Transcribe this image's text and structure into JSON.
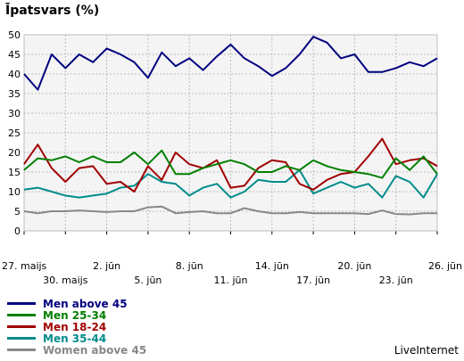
{
  "title": "Īpatsvars (%)",
  "watermark": "LiveInternet",
  "colors": {
    "plot_bg": "#f4f4f4",
    "grid": "#bdbdbd",
    "axis": "#000000"
  },
  "chart_data": {
    "type": "line",
    "title": "Īpatsvars (%)",
    "xlabel": "",
    "ylabel": "",
    "ylim": [
      0,
      50
    ],
    "yticks": [
      0,
      5,
      10,
      15,
      20,
      25,
      30,
      35,
      40,
      45,
      50
    ],
    "grid": true,
    "legend_position": "bottom-left",
    "x_tick_labels": [
      {
        "index": 0,
        "label": "27. maijs"
      },
      {
        "index": 3,
        "label": "30. maijs"
      },
      {
        "index": 6,
        "label": "2. jūn"
      },
      {
        "index": 9,
        "label": "5. jūn"
      },
      {
        "index": 12,
        "label": "8. jūn"
      },
      {
        "index": 15,
        "label": "11. jūn"
      },
      {
        "index": 18,
        "label": "14. jūn"
      },
      {
        "index": 21,
        "label": "17. jūn"
      },
      {
        "index": 24,
        "label": "20. jūn"
      },
      {
        "index": 27,
        "label": "23. jūn"
      },
      {
        "index": 30,
        "label": "26. jūn"
      }
    ],
    "series": [
      {
        "name": "Women above 45",
        "color": "#888888",
        "values": [
          5,
          4.5,
          5,
          5,
          5.2,
          5,
          4.8,
          5,
          5,
          6,
          6.2,
          4.5,
          4.8,
          5,
          4.5,
          4.5,
          5.8,
          5,
          4.5,
          4.5,
          4.8,
          4.5,
          4.5,
          4.5,
          4.5,
          4.3,
          5.2,
          4.3,
          4.2,
          4.5,
          4.5
        ]
      },
      {
        "name": "Men 35-44",
        "color": "#008b8b",
        "values": [
          10.5,
          11,
          10,
          9,
          8.5,
          9,
          9.5,
          11,
          11.5,
          14.5,
          12.5,
          12,
          9,
          11,
          12,
          8.5,
          10,
          13,
          12.5,
          12.5,
          15.5,
          9.5,
          11,
          12.5,
          11,
          12,
          8.5,
          14,
          12.5,
          8.5,
          14.5
        ]
      },
      {
        "name": "Men 18-24",
        "color": "#a00000",
        "values": [
          17,
          22,
          16,
          12.5,
          16,
          16.5,
          12,
          12.5,
          10,
          16.5,
          13,
          20,
          17,
          16,
          18,
          11,
          11.5,
          16,
          18,
          17.5,
          12,
          10.5,
          13,
          14.5,
          15,
          19,
          23.5,
          17,
          18,
          18.5,
          16.5
        ]
      },
      {
        "name": "Men 25-34",
        "color": "#008000",
        "values": [
          15.5,
          18.5,
          18,
          19,
          17.5,
          19,
          17.5,
          17.5,
          20,
          17,
          20.5,
          14.5,
          14.5,
          16,
          17,
          18,
          17,
          15,
          15,
          16.5,
          15.5,
          18,
          16.5,
          15.5,
          15,
          14.5,
          13.5,
          18.5,
          15.5,
          19,
          14.5
        ]
      },
      {
        "name": "Men above 45",
        "color": "#000080",
        "values": [
          40,
          36,
          45,
          41.5,
          45,
          43,
          46.5,
          45,
          43,
          39,
          45.5,
          42,
          44,
          41,
          44.5,
          47.5,
          44,
          42,
          39.5,
          41.5,
          45,
          49.5,
          48,
          44,
          45,
          40.5,
          40.5,
          41.5,
          43,
          42,
          44
        ]
      }
    ],
    "legend_order": [
      "Men above 45",
      "Men 25-34",
      "Men 18-24",
      "Men 35-44",
      "Women above 45"
    ]
  },
  "legend": [
    {
      "label": "Men above 45",
      "color": "#000080"
    },
    {
      "label": "Men 25-34",
      "color": "#008000"
    },
    {
      "label": "Men 18-24",
      "color": "#a00000"
    },
    {
      "label": "Men 35-44",
      "color": "#008b8b"
    },
    {
      "label": "Women above 45",
      "color": "#888888"
    }
  ]
}
